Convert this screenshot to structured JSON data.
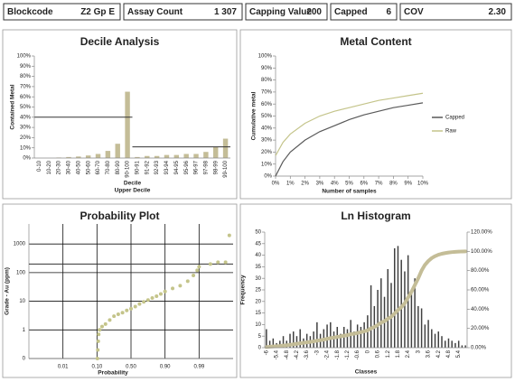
{
  "header": {
    "fields": [
      {
        "label": "Blockcode",
        "value": "Z2 Gp E"
      },
      {
        "label": "Assay Count",
        "value": "1 307"
      },
      {
        "label": "Capping Value",
        "value": "200"
      },
      {
        "label": "Capped",
        "value": "6"
      },
      {
        "label": "COV",
        "value": "2.30"
      }
    ]
  },
  "chart_data": [
    {
      "type": "bar",
      "title": "Decile Analysis",
      "ylabel": "Contained Metal",
      "xlabel": "Decile",
      "xlabel_upper": "Upper Decile",
      "categories": [
        "0-10",
        "10-20",
        "20-30",
        "30-40",
        "40-50",
        "50-60",
        "60-70",
        "70-80",
        "80-90",
        "90-100",
        "90-91",
        "91-92",
        "92-93",
        "93-94",
        "94-95",
        "95-96",
        "96-97",
        "97-98",
        "98-99",
        "99-100"
      ],
      "values": [
        0,
        0,
        0.5,
        1,
        1.5,
        2.5,
        4,
        7,
        14,
        65,
        1,
        2,
        2,
        3,
        3,
        4,
        4,
        6,
        11,
        19
      ],
      "color": "#c4bd97",
      "hlines": [
        40,
        11
      ],
      "grid": false,
      "ylim": [
        0,
        100
      ],
      "yticks": [
        {
          "value": 0,
          "label": "0%"
        },
        {
          "value": 10,
          "label": "10%"
        },
        {
          "value": 20,
          "label": "20%"
        },
        {
          "value": 30,
          "label": "30%"
        },
        {
          "value": 40,
          "label": "40%"
        },
        {
          "value": 50,
          "label": "50%"
        },
        {
          "value": 60,
          "label": "60%"
        },
        {
          "value": 70,
          "label": "70%"
        },
        {
          "value": 80,
          "label": "80%"
        },
        {
          "value": 90,
          "label": "90%"
        },
        {
          "value": 100,
          "label": "100%"
        }
      ]
    },
    {
      "type": "line",
      "title": "Metal Content",
      "ylabel": "Cumulative metal",
      "xlabel": "Number of samples",
      "legend": "right",
      "grid": false,
      "x": [
        0,
        0.5,
        1,
        2,
        3,
        4,
        5,
        6,
        7,
        8,
        9,
        10
      ],
      "series": [
        {
          "name": "Capped",
          "color": "#595959",
          "values": [
            0,
            12,
            20,
            30,
            37,
            42,
            47,
            51,
            54,
            57,
            59,
            61
          ]
        },
        {
          "name": "Raw",
          "color": "#c4c48a",
          "values": [
            17,
            28,
            35,
            44,
            50,
            54,
            57,
            60,
            63,
            65,
            67,
            69
          ]
        }
      ],
      "xlim": [
        0,
        10
      ],
      "xticks": [
        {
          "value": 0,
          "label": "0%"
        },
        {
          "value": 1,
          "label": "1%"
        },
        {
          "value": 2,
          "label": "2%"
        },
        {
          "value": 3,
          "label": "3%"
        },
        {
          "value": 4,
          "label": "4%"
        },
        {
          "value": 5,
          "label": "5%"
        },
        {
          "value": 6,
          "label": "6%"
        },
        {
          "value": 7,
          "label": "7%"
        },
        {
          "value": 8,
          "label": "8%"
        },
        {
          "value": 9,
          "label": "9%"
        },
        {
          "value": 10,
          "label": "10%"
        }
      ],
      "ylim": [
        0,
        100
      ],
      "yticks": [
        {
          "value": 0,
          "label": "0%"
        },
        {
          "value": 10,
          "label": "10%"
        },
        {
          "value": 20,
          "label": "20%"
        },
        {
          "value": 30,
          "label": "30%"
        },
        {
          "value": 40,
          "label": "40%"
        },
        {
          "value": 50,
          "label": "50%"
        },
        {
          "value": 60,
          "label": "60%"
        },
        {
          "value": 70,
          "label": "70%"
        },
        {
          "value": 80,
          "label": "80%"
        },
        {
          "value": 90,
          "label": "90%"
        },
        {
          "value": 100,
          "label": "100%"
        }
      ]
    },
    {
      "type": "scatter",
      "title": "Probability Plot",
      "ylabel": "Grade - Au (ppm)",
      "xlabel": "Probability",
      "ylog": true,
      "grid": true,
      "color": "#c4c48a",
      "hline": 200,
      "x": [
        0.105,
        0.11,
        0.115,
        0.12,
        0.13,
        0.16,
        0.2,
        0.25,
        0.3,
        0.35,
        0.4,
        0.45,
        0.5,
        0.55,
        0.6,
        0.65,
        0.7,
        0.75,
        0.8,
        0.85,
        0.9,
        0.92,
        0.94,
        0.96,
        0.975,
        0.985,
        0.99,
        0.993,
        0.995,
        0.997,
        0.998
      ],
      "values": [
        0.1,
        0.2,
        0.4,
        0.7,
        1,
        1.3,
        1.6,
        2.2,
        3,
        3.5,
        4,
        4.8,
        5.5,
        6.5,
        8,
        9.5,
        11,
        13,
        15,
        18,
        22,
        28,
        35,
        50,
        80,
        120,
        160,
        200,
        230,
        230,
        2000
      ],
      "xlim": [
        0.001,
        0.999
      ],
      "xticks": [
        0.01,
        {
          "value": 0.1,
          "label": "0.10"
        },
        {
          "value": 0.5,
          "label": "0.50"
        },
        {
          "value": 0.9,
          "label": "0.90"
        },
        0.99
      ],
      "ylim": [
        0.1,
        5000
      ],
      "yticks": [
        {
          "value": 0.1,
          "label": "0"
        },
        1,
        10,
        100,
        1000
      ]
    },
    {
      "type": "combo",
      "title": "Ln Histogram",
      "ylabel": "Frequency",
      "xlabel": "Classes",
      "grid": false,
      "categories": [
        "-6",
        null,
        null,
        "-5.4",
        null,
        null,
        "-4.8",
        null,
        null,
        "-4.2",
        null,
        null,
        "-3.6",
        null,
        null,
        "-3",
        null,
        null,
        "-2.4",
        null,
        null,
        "-1.8",
        null,
        null,
        "-1.2",
        null,
        null,
        "-0.6",
        null,
        null,
        "0",
        null,
        null,
        "0.6",
        null,
        null,
        "1.2",
        null,
        null,
        "1.8",
        null,
        null,
        "2.4",
        null,
        null,
        "3",
        null,
        null,
        "3.6",
        null,
        null,
        "4.2",
        null,
        null,
        "4.8",
        null,
        null,
        "5.4",
        null,
        null
      ],
      "series": [
        {
          "color": "#404040",
          "values": [
            8,
            3,
            4,
            2,
            3,
            5,
            3,
            6,
            7,
            5,
            8,
            4,
            6,
            5,
            7,
            11,
            6,
            8,
            10,
            11,
            7,
            9,
            6,
            9,
            8,
            12,
            7,
            10,
            9,
            11,
            14,
            27,
            18,
            25,
            30,
            22,
            34,
            28,
            43,
            44,
            38,
            33,
            40,
            25,
            30,
            18,
            17,
            10,
            12,
            8,
            6,
            7,
            5,
            3,
            4,
            3,
            2,
            3,
            1,
            1
          ]
        },
        {
          "color": "#c4bd97",
          "axis": "y2",
          "values": [
            0.6,
            1,
            1.3,
            1.5,
            1.8,
            2.2,
            2.5,
            3,
            3.5,
            4,
            4.6,
            5,
            5.5,
            6,
            6.5,
            7.3,
            7.8,
            8.4,
            9.2,
            10,
            10.5,
            11.2,
            11.7,
            12.4,
            13,
            14,
            14.5,
            15.3,
            16,
            17,
            18,
            20,
            21.5,
            23.5,
            26,
            27.5,
            30,
            32,
            35.5,
            39,
            42,
            46,
            52,
            58,
            65,
            72,
            80,
            86,
            90,
            93,
            95,
            96.5,
            97.5,
            98.2,
            98.8,
            99.2,
            99.5,
            99.7,
            99.9,
            100
          ]
        }
      ],
      "ylim": [
        0,
        50
      ],
      "yticks": [
        0,
        5,
        10,
        15,
        20,
        25,
        30,
        35,
        40,
        45,
        50
      ],
      "y2lim": [
        0,
        120
      ],
      "y2ticks": [
        {
          "value": 0,
          "label": "0.00%"
        },
        {
          "value": 20,
          "label": "20.00%"
        },
        {
          "value": 40,
          "label": "40.00%"
        },
        {
          "value": 60,
          "label": "60.00%"
        },
        {
          "value": 80,
          "label": "80.00%"
        },
        {
          "value": 100,
          "label": "100.00%"
        },
        {
          "value": 120,
          "label": "120.00%"
        }
      ]
    }
  ]
}
